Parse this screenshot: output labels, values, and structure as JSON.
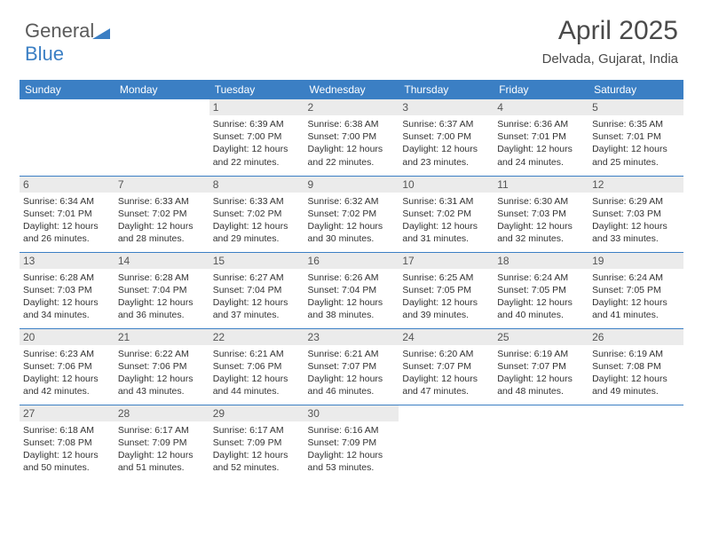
{
  "logo": {
    "text1": "General",
    "text2": "Blue",
    "tri_color": "#3b7fc4"
  },
  "title": "April 2025",
  "subtitle": "Delvada, Gujarat, India",
  "header_bg": "#3b7fc4",
  "header_fg": "#ffffff",
  "daynum_bg": "#ebebeb",
  "rule_color": "#3b7fc4",
  "weekdays": [
    "Sunday",
    "Monday",
    "Tuesday",
    "Wednesday",
    "Thursday",
    "Friday",
    "Saturday"
  ],
  "weeks": [
    [
      null,
      null,
      {
        "n": 1,
        "sr": "6:39 AM",
        "ss": "7:00 PM",
        "dl": "12 hours and 22 minutes."
      },
      {
        "n": 2,
        "sr": "6:38 AM",
        "ss": "7:00 PM",
        "dl": "12 hours and 22 minutes."
      },
      {
        "n": 3,
        "sr": "6:37 AM",
        "ss": "7:00 PM",
        "dl": "12 hours and 23 minutes."
      },
      {
        "n": 4,
        "sr": "6:36 AM",
        "ss": "7:01 PM",
        "dl": "12 hours and 24 minutes."
      },
      {
        "n": 5,
        "sr": "6:35 AM",
        "ss": "7:01 PM",
        "dl": "12 hours and 25 minutes."
      }
    ],
    [
      {
        "n": 6,
        "sr": "6:34 AM",
        "ss": "7:01 PM",
        "dl": "12 hours and 26 minutes."
      },
      {
        "n": 7,
        "sr": "6:33 AM",
        "ss": "7:02 PM",
        "dl": "12 hours and 28 minutes."
      },
      {
        "n": 8,
        "sr": "6:33 AM",
        "ss": "7:02 PM",
        "dl": "12 hours and 29 minutes."
      },
      {
        "n": 9,
        "sr": "6:32 AM",
        "ss": "7:02 PM",
        "dl": "12 hours and 30 minutes."
      },
      {
        "n": 10,
        "sr": "6:31 AM",
        "ss": "7:02 PM",
        "dl": "12 hours and 31 minutes."
      },
      {
        "n": 11,
        "sr": "6:30 AM",
        "ss": "7:03 PM",
        "dl": "12 hours and 32 minutes."
      },
      {
        "n": 12,
        "sr": "6:29 AM",
        "ss": "7:03 PM",
        "dl": "12 hours and 33 minutes."
      }
    ],
    [
      {
        "n": 13,
        "sr": "6:28 AM",
        "ss": "7:03 PM",
        "dl": "12 hours and 34 minutes."
      },
      {
        "n": 14,
        "sr": "6:28 AM",
        "ss": "7:04 PM",
        "dl": "12 hours and 36 minutes."
      },
      {
        "n": 15,
        "sr": "6:27 AM",
        "ss": "7:04 PM",
        "dl": "12 hours and 37 minutes."
      },
      {
        "n": 16,
        "sr": "6:26 AM",
        "ss": "7:04 PM",
        "dl": "12 hours and 38 minutes."
      },
      {
        "n": 17,
        "sr": "6:25 AM",
        "ss": "7:05 PM",
        "dl": "12 hours and 39 minutes."
      },
      {
        "n": 18,
        "sr": "6:24 AM",
        "ss": "7:05 PM",
        "dl": "12 hours and 40 minutes."
      },
      {
        "n": 19,
        "sr": "6:24 AM",
        "ss": "7:05 PM",
        "dl": "12 hours and 41 minutes."
      }
    ],
    [
      {
        "n": 20,
        "sr": "6:23 AM",
        "ss": "7:06 PM",
        "dl": "12 hours and 42 minutes."
      },
      {
        "n": 21,
        "sr": "6:22 AM",
        "ss": "7:06 PM",
        "dl": "12 hours and 43 minutes."
      },
      {
        "n": 22,
        "sr": "6:21 AM",
        "ss": "7:06 PM",
        "dl": "12 hours and 44 minutes."
      },
      {
        "n": 23,
        "sr": "6:21 AM",
        "ss": "7:07 PM",
        "dl": "12 hours and 46 minutes."
      },
      {
        "n": 24,
        "sr": "6:20 AM",
        "ss": "7:07 PM",
        "dl": "12 hours and 47 minutes."
      },
      {
        "n": 25,
        "sr": "6:19 AM",
        "ss": "7:07 PM",
        "dl": "12 hours and 48 minutes."
      },
      {
        "n": 26,
        "sr": "6:19 AM",
        "ss": "7:08 PM",
        "dl": "12 hours and 49 minutes."
      }
    ],
    [
      {
        "n": 27,
        "sr": "6:18 AM",
        "ss": "7:08 PM",
        "dl": "12 hours and 50 minutes."
      },
      {
        "n": 28,
        "sr": "6:17 AM",
        "ss": "7:09 PM",
        "dl": "12 hours and 51 minutes."
      },
      {
        "n": 29,
        "sr": "6:17 AM",
        "ss": "7:09 PM",
        "dl": "12 hours and 52 minutes."
      },
      {
        "n": 30,
        "sr": "6:16 AM",
        "ss": "7:09 PM",
        "dl": "12 hours and 53 minutes."
      },
      null,
      null,
      null
    ]
  ],
  "labels": {
    "sunrise": "Sunrise:",
    "sunset": "Sunset:",
    "daylight": "Daylight:"
  }
}
